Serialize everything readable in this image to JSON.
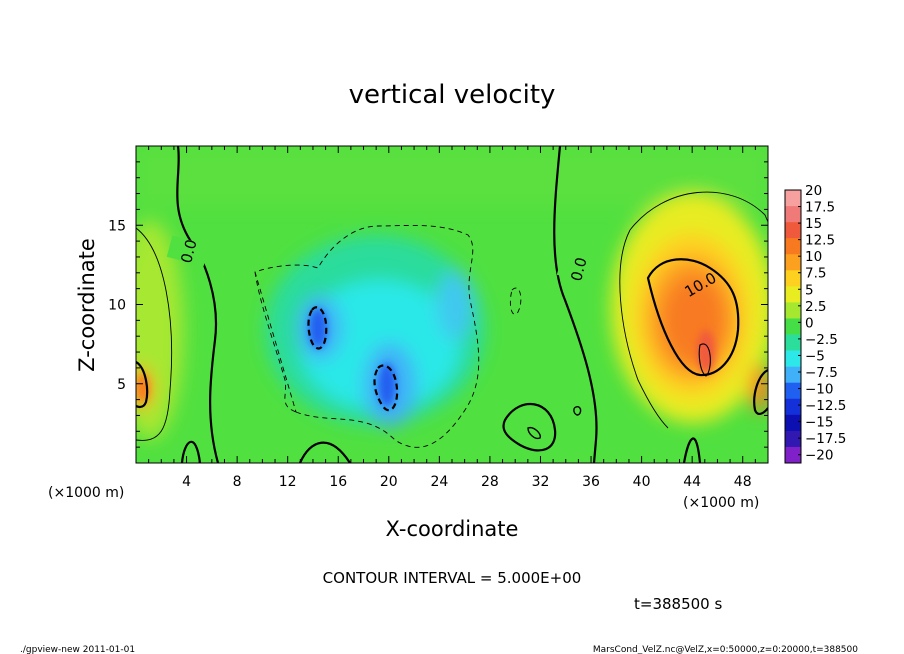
{
  "chart_data": {
    "type": "heatmap",
    "title": "vertical velocity",
    "xlabel": "X-coordinate",
    "ylabel": "Z-coordinate",
    "x_unit_label": "(×1000 m)",
    "y_unit_label": "(×1000 m)",
    "xlim": [
      0,
      50
    ],
    "ylim": [
      0,
      20
    ],
    "x_ticks": [
      "4",
      "8",
      "12",
      "16",
      "20",
      "24",
      "28",
      "32",
      "36",
      "40",
      "44",
      "48"
    ],
    "y_ticks": [
      "5",
      "10",
      "15"
    ],
    "colorbar": {
      "labels": [
        "20",
        "17.5",
        "15",
        "12.5",
        "10",
        "7.5",
        "5",
        "2.5",
        "0",
        "−2.5",
        "−5",
        "−7.5",
        "−10",
        "−12.5",
        "−15",
        "−17.5",
        "−20"
      ],
      "colors": [
        "#f7a0a0",
        "#f07a78",
        "#f05a3c",
        "#f87a20",
        "#fca020",
        "#fed020",
        "#e8ec20",
        "#a6e830",
        "#46de46",
        "#2cde9c",
        "#2ce8e8",
        "#40b0f8",
        "#2060f0",
        "#1430d8",
        "#0c10b0",
        "#3018b0",
        "#8020c8"
      ]
    },
    "contour_labels": [
      "0.0",
      "0.0",
      "10.0"
    ],
    "contour_interval_text": "CONTOUR INTERVAL = 5.000E+00",
    "time_text": "t=388500 s"
  },
  "footer": {
    "left": "./gpview-new  2011-01-01",
    "right": "MarsCond_VelZ.nc@VelZ,x=0:50000,z=0:20000,t=388500"
  }
}
